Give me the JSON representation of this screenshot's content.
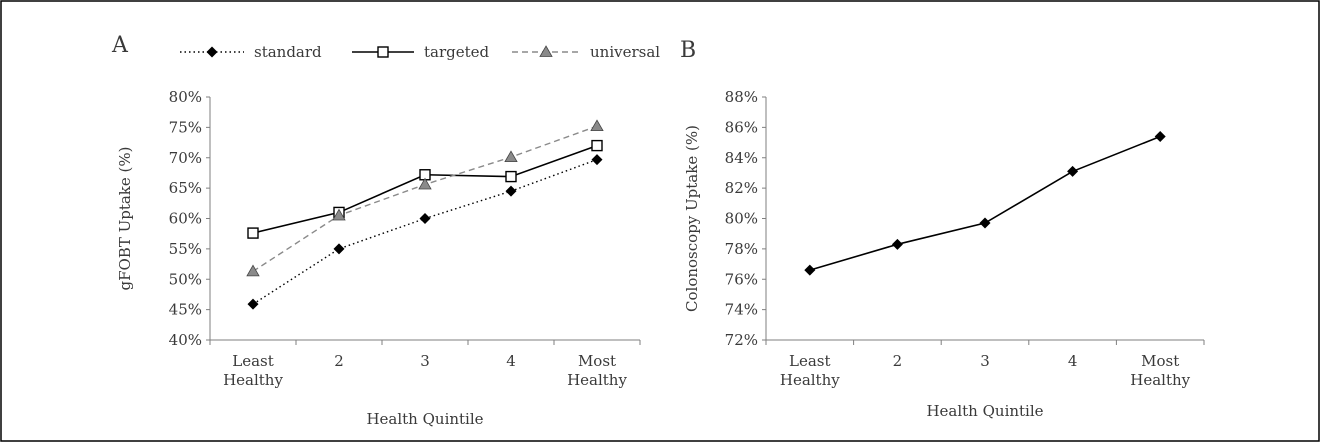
{
  "chart_data": [
    {
      "type": "line",
      "panel_label": "A",
      "categories": [
        [
          "Least",
          "Healthy"
        ],
        [
          "2"
        ],
        [
          "3"
        ],
        [
          "4"
        ],
        [
          "Most",
          "Healthy"
        ]
      ],
      "series": [
        {
          "name": "standard",
          "values": [
            45.9,
            55.0,
            60.0,
            64.5,
            69.7
          ],
          "color": "#000000",
          "dash": "dotted",
          "marker": "diamond"
        },
        {
          "name": "targeted",
          "values": [
            57.6,
            61.0,
            67.2,
            66.9,
            72.0
          ],
          "color": "#000000",
          "dash": "solid",
          "marker": "square-open"
        },
        {
          "name": "universal",
          "values": [
            51.3,
            60.5,
            65.6,
            70.1,
            75.2
          ],
          "color": "#8a8a8a",
          "dash": "dashed",
          "marker": "triangle"
        }
      ],
      "xlabel": "Health Quintile",
      "ylabel": "gFOBT Uptake (%)",
      "ylim": [
        40,
        80
      ],
      "ytick_step": 5,
      "ytick_labels": [
        "40%",
        "45%",
        "50%",
        "55%",
        "60%",
        "65%",
        "70%",
        "75%",
        "80%"
      ],
      "grid": false,
      "legend": "top"
    },
    {
      "type": "line",
      "panel_label": "B",
      "categories": [
        [
          "Least",
          "Healthy"
        ],
        [
          "2"
        ],
        [
          "3"
        ],
        [
          "4"
        ],
        [
          "Most",
          "Healthy"
        ]
      ],
      "series": [
        {
          "values": [
            76.6,
            78.3,
            79.7,
            83.1,
            85.4
          ],
          "color": "#000000",
          "dash": "solid",
          "marker": "diamond"
        }
      ],
      "xlabel": "Health Quintile",
      "ylabel": "Colonoscopy Uptake (%)",
      "ylim": [
        72,
        88
      ],
      "ytick_step": 2,
      "ytick_labels": [
        "72%",
        "74%",
        "76%",
        "78%",
        "80%",
        "82%",
        "84%",
        "86%",
        "88%"
      ],
      "grid": false,
      "legend": "none"
    }
  ]
}
